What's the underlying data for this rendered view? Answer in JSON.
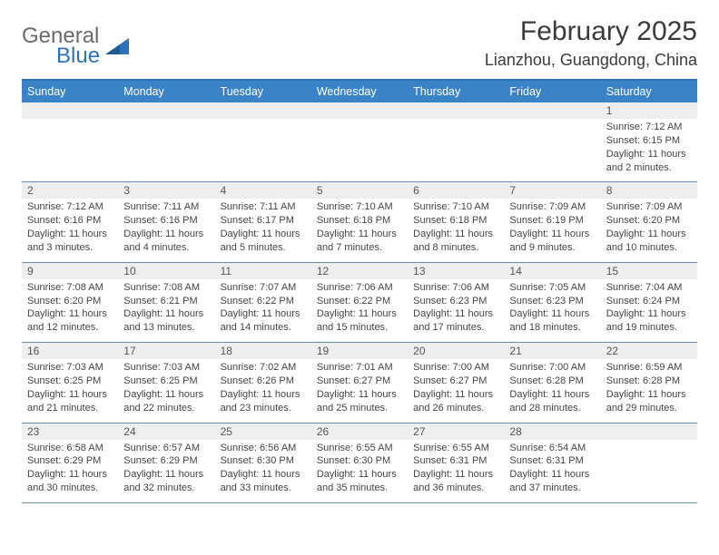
{
  "logo": {
    "word1": "General",
    "word2": "Blue"
  },
  "colors": {
    "header_bar": "#3b83c7",
    "header_border": "#2d72b8",
    "week_divider": "#6a8db5",
    "daynum_bg": "#eeeeee",
    "text": "#3a3a3a",
    "logo_gray": "#6a6a6a",
    "logo_blue": "#2d72b8",
    "white": "#ffffff"
  },
  "typography": {
    "title_fontsize": 30,
    "location_fontsize": 18,
    "dayheader_fontsize": 12.5,
    "daynum_fontsize": 12,
    "cell_fontsize": 11
  },
  "title": "February 2025",
  "location": "Lianzhou, Guangdong, China",
  "day_labels": [
    "Sunday",
    "Monday",
    "Tuesday",
    "Wednesday",
    "Thursday",
    "Friday",
    "Saturday"
  ],
  "weeks": [
    [
      {
        "n": "",
        "sr": "",
        "ss": "",
        "dl": ""
      },
      {
        "n": "",
        "sr": "",
        "ss": "",
        "dl": ""
      },
      {
        "n": "",
        "sr": "",
        "ss": "",
        "dl": ""
      },
      {
        "n": "",
        "sr": "",
        "ss": "",
        "dl": ""
      },
      {
        "n": "",
        "sr": "",
        "ss": "",
        "dl": ""
      },
      {
        "n": "",
        "sr": "",
        "ss": "",
        "dl": ""
      },
      {
        "n": "1",
        "sr": "Sunrise: 7:12 AM",
        "ss": "Sunset: 6:15 PM",
        "dl": "Daylight: 11 hours and 2 minutes."
      }
    ],
    [
      {
        "n": "2",
        "sr": "Sunrise: 7:12 AM",
        "ss": "Sunset: 6:16 PM",
        "dl": "Daylight: 11 hours and 3 minutes."
      },
      {
        "n": "3",
        "sr": "Sunrise: 7:11 AM",
        "ss": "Sunset: 6:16 PM",
        "dl": "Daylight: 11 hours and 4 minutes."
      },
      {
        "n": "4",
        "sr": "Sunrise: 7:11 AM",
        "ss": "Sunset: 6:17 PM",
        "dl": "Daylight: 11 hours and 5 minutes."
      },
      {
        "n": "5",
        "sr": "Sunrise: 7:10 AM",
        "ss": "Sunset: 6:18 PM",
        "dl": "Daylight: 11 hours and 7 minutes."
      },
      {
        "n": "6",
        "sr": "Sunrise: 7:10 AM",
        "ss": "Sunset: 6:18 PM",
        "dl": "Daylight: 11 hours and 8 minutes."
      },
      {
        "n": "7",
        "sr": "Sunrise: 7:09 AM",
        "ss": "Sunset: 6:19 PM",
        "dl": "Daylight: 11 hours and 9 minutes."
      },
      {
        "n": "8",
        "sr": "Sunrise: 7:09 AM",
        "ss": "Sunset: 6:20 PM",
        "dl": "Daylight: 11 hours and 10 minutes."
      }
    ],
    [
      {
        "n": "9",
        "sr": "Sunrise: 7:08 AM",
        "ss": "Sunset: 6:20 PM",
        "dl": "Daylight: 11 hours and 12 minutes."
      },
      {
        "n": "10",
        "sr": "Sunrise: 7:08 AM",
        "ss": "Sunset: 6:21 PM",
        "dl": "Daylight: 11 hours and 13 minutes."
      },
      {
        "n": "11",
        "sr": "Sunrise: 7:07 AM",
        "ss": "Sunset: 6:22 PM",
        "dl": "Daylight: 11 hours and 14 minutes."
      },
      {
        "n": "12",
        "sr": "Sunrise: 7:06 AM",
        "ss": "Sunset: 6:22 PM",
        "dl": "Daylight: 11 hours and 15 minutes."
      },
      {
        "n": "13",
        "sr": "Sunrise: 7:06 AM",
        "ss": "Sunset: 6:23 PM",
        "dl": "Daylight: 11 hours and 17 minutes."
      },
      {
        "n": "14",
        "sr": "Sunrise: 7:05 AM",
        "ss": "Sunset: 6:23 PM",
        "dl": "Daylight: 11 hours and 18 minutes."
      },
      {
        "n": "15",
        "sr": "Sunrise: 7:04 AM",
        "ss": "Sunset: 6:24 PM",
        "dl": "Daylight: 11 hours and 19 minutes."
      }
    ],
    [
      {
        "n": "16",
        "sr": "Sunrise: 7:03 AM",
        "ss": "Sunset: 6:25 PM",
        "dl": "Daylight: 11 hours and 21 minutes."
      },
      {
        "n": "17",
        "sr": "Sunrise: 7:03 AM",
        "ss": "Sunset: 6:25 PM",
        "dl": "Daylight: 11 hours and 22 minutes."
      },
      {
        "n": "18",
        "sr": "Sunrise: 7:02 AM",
        "ss": "Sunset: 6:26 PM",
        "dl": "Daylight: 11 hours and 23 minutes."
      },
      {
        "n": "19",
        "sr": "Sunrise: 7:01 AM",
        "ss": "Sunset: 6:27 PM",
        "dl": "Daylight: 11 hours and 25 minutes."
      },
      {
        "n": "20",
        "sr": "Sunrise: 7:00 AM",
        "ss": "Sunset: 6:27 PM",
        "dl": "Daylight: 11 hours and 26 minutes."
      },
      {
        "n": "21",
        "sr": "Sunrise: 7:00 AM",
        "ss": "Sunset: 6:28 PM",
        "dl": "Daylight: 11 hours and 28 minutes."
      },
      {
        "n": "22",
        "sr": "Sunrise: 6:59 AM",
        "ss": "Sunset: 6:28 PM",
        "dl": "Daylight: 11 hours and 29 minutes."
      }
    ],
    [
      {
        "n": "23",
        "sr": "Sunrise: 6:58 AM",
        "ss": "Sunset: 6:29 PM",
        "dl": "Daylight: 11 hours and 30 minutes."
      },
      {
        "n": "24",
        "sr": "Sunrise: 6:57 AM",
        "ss": "Sunset: 6:29 PM",
        "dl": "Daylight: 11 hours and 32 minutes."
      },
      {
        "n": "25",
        "sr": "Sunrise: 6:56 AM",
        "ss": "Sunset: 6:30 PM",
        "dl": "Daylight: 11 hours and 33 minutes."
      },
      {
        "n": "26",
        "sr": "Sunrise: 6:55 AM",
        "ss": "Sunset: 6:30 PM",
        "dl": "Daylight: 11 hours and 35 minutes."
      },
      {
        "n": "27",
        "sr": "Sunrise: 6:55 AM",
        "ss": "Sunset: 6:31 PM",
        "dl": "Daylight: 11 hours and 36 minutes."
      },
      {
        "n": "28",
        "sr": "Sunrise: 6:54 AM",
        "ss": "Sunset: 6:31 PM",
        "dl": "Daylight: 11 hours and 37 minutes."
      },
      {
        "n": "",
        "sr": "",
        "ss": "",
        "dl": ""
      }
    ]
  ]
}
